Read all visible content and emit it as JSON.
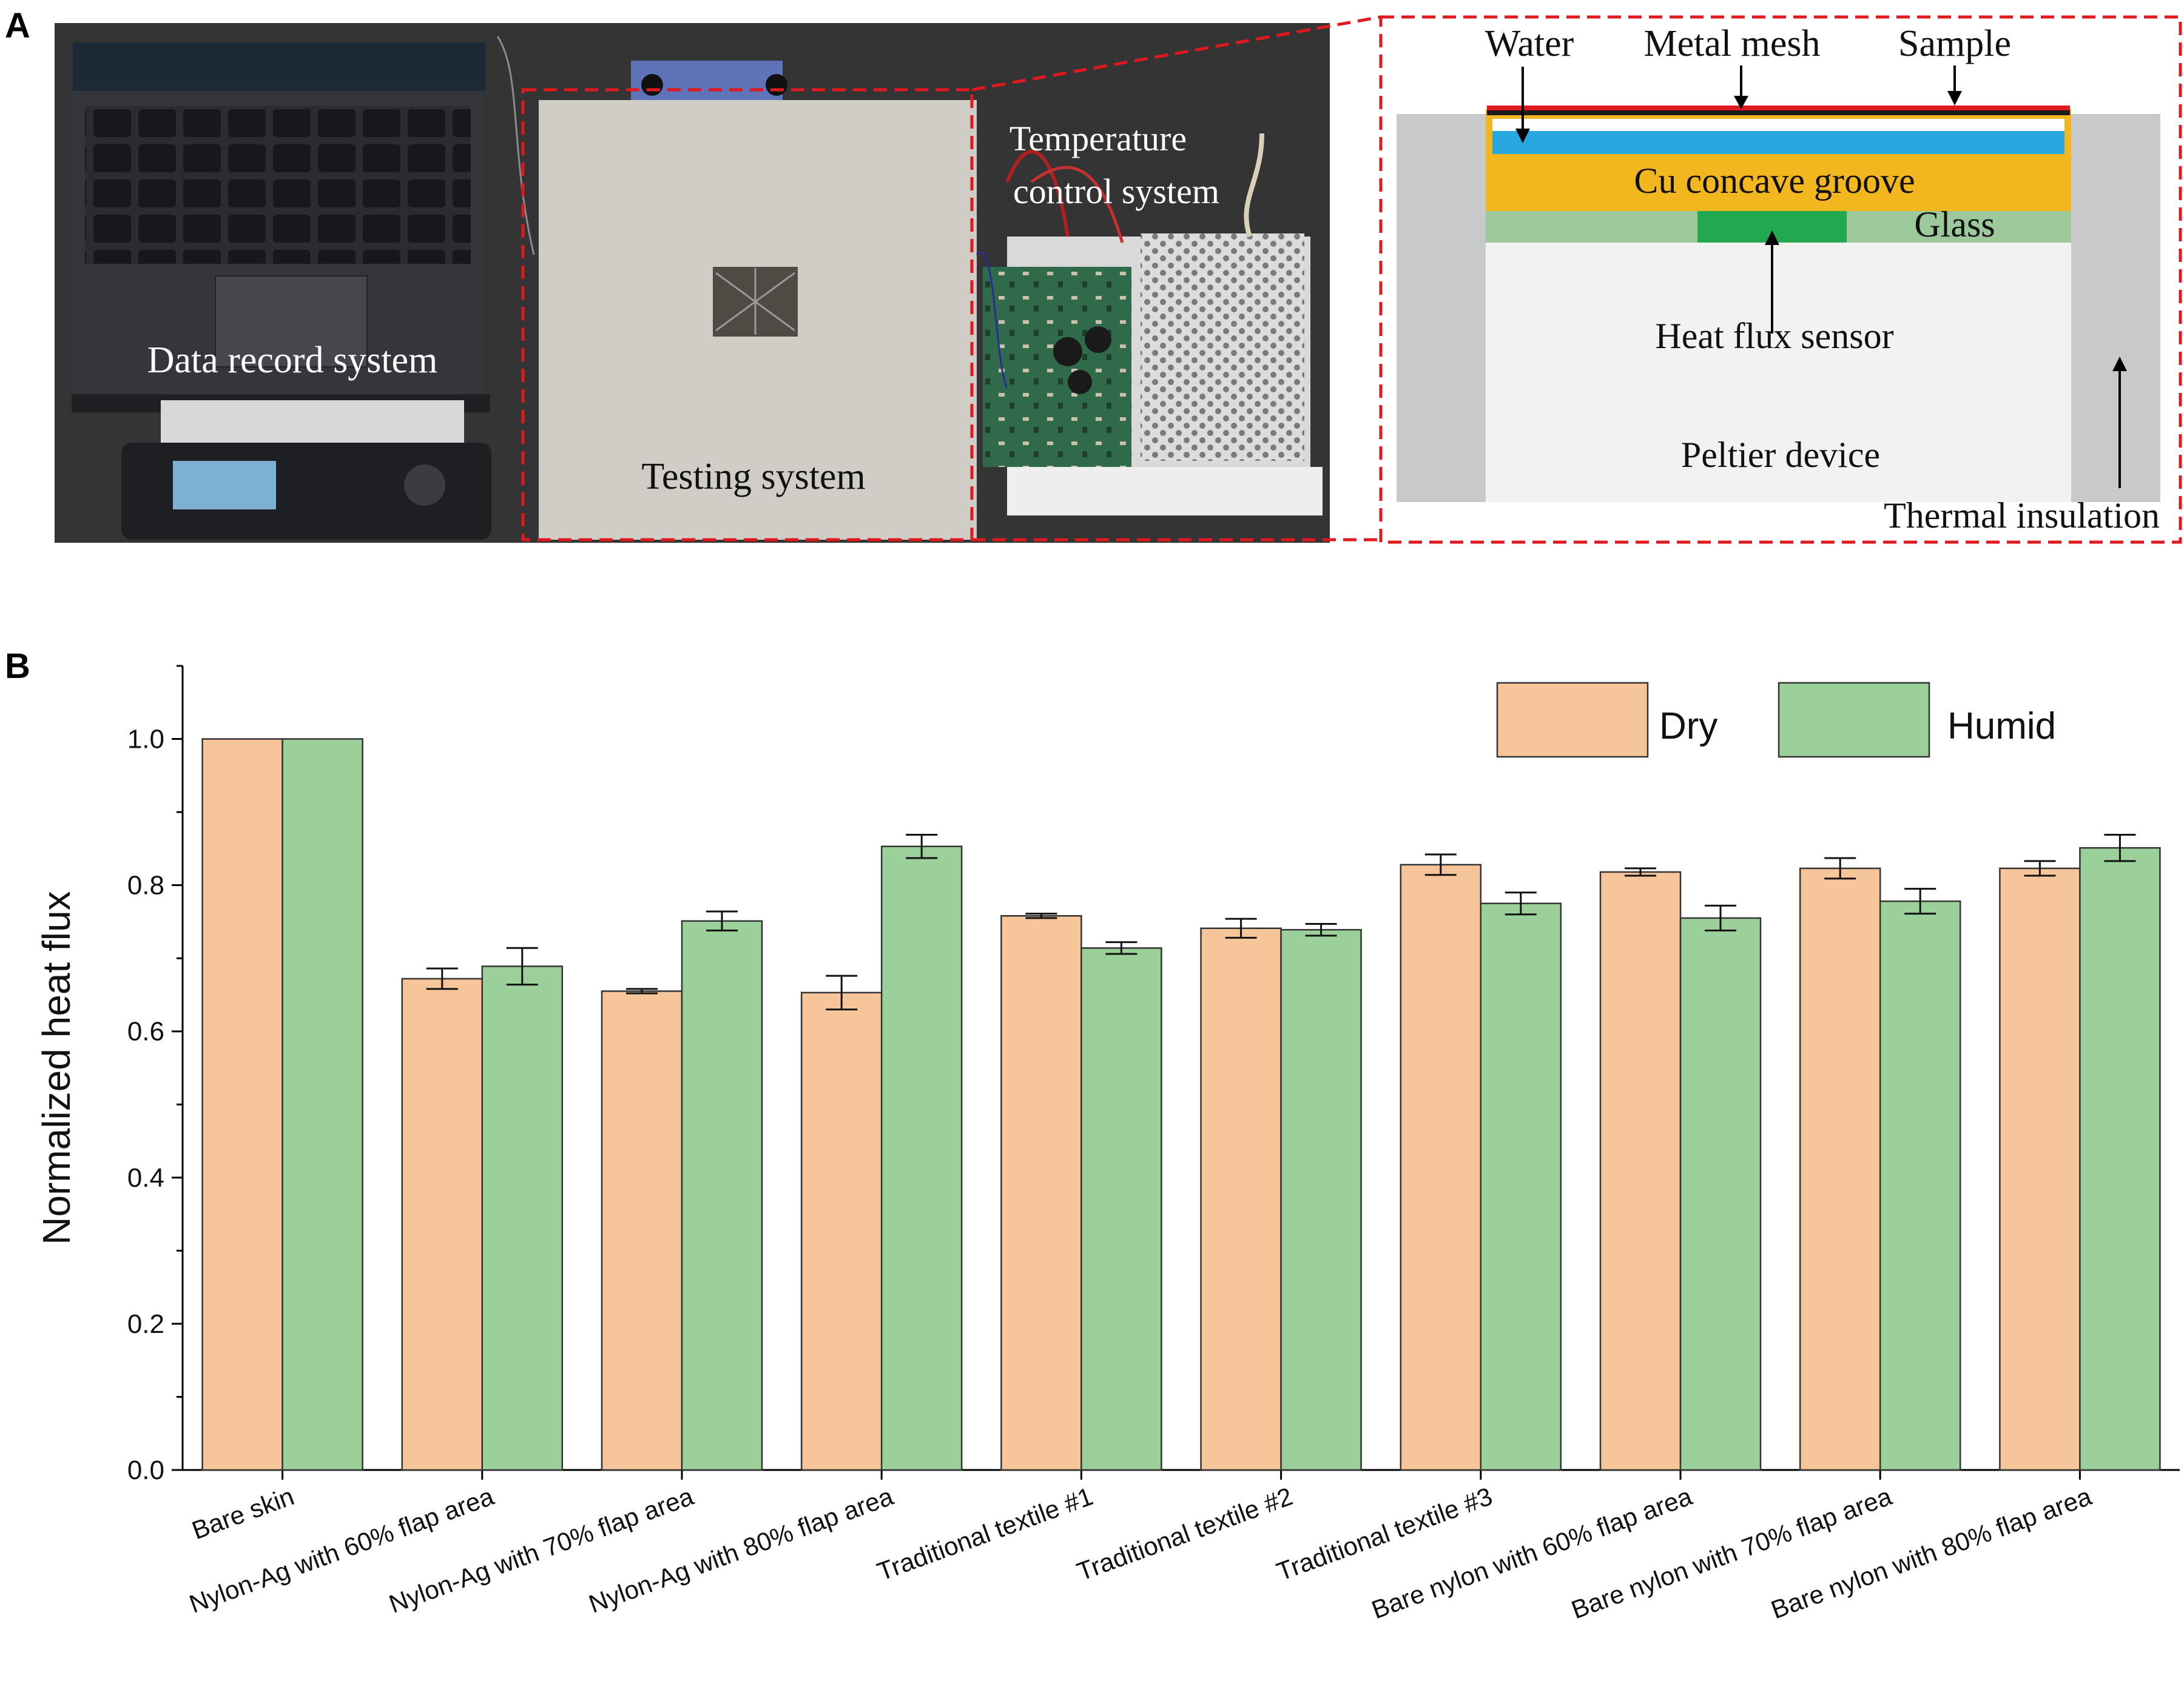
{
  "panel_a": {
    "letter": "A",
    "photo_labels": {
      "data_record": "Data record system",
      "testing": "Testing system",
      "temp_control_line1": "Temperature",
      "temp_control_line2": "control system"
    },
    "schematic_labels": {
      "water": "Water",
      "metal_mesh": "Metal mesh",
      "sample": "Sample",
      "cu_groove": "Cu concave groove",
      "glass": "Glass",
      "heat_flux_sensor": "Heat flux sensor",
      "peltier": "Peltier device",
      "thermal_insulation": "Thermal insulation"
    },
    "colors": {
      "cu": "#f2b71f",
      "water": "#29a8e0",
      "glass": "#9cc89b",
      "sensor": "#22a94f",
      "insulation": "#c8c9ca",
      "peltier": "#f2f2f1",
      "mesh": "#e0191e",
      "sample": "#1a1a1a",
      "frame": "#e0191e"
    }
  },
  "panel_b": {
    "letter": "B"
  },
  "chart_data": {
    "type": "bar",
    "title": "",
    "xlabel": "",
    "ylabel": "Normalized heat flux",
    "ylim": [
      0,
      1.1
    ],
    "yticks": [
      "0.0",
      "0.2",
      "0.4",
      "0.6",
      "0.8",
      "1.0"
    ],
    "ytick_values": [
      0,
      0.2,
      0.4,
      0.6,
      0.8,
      1.0
    ],
    "grid": false,
    "legend_position": "top-right",
    "categories": [
      "Bare skin",
      "Nylon-Ag with 60% flap area",
      "Nylon-Ag with 70% flap area",
      "Nylon-Ag with 80% flap area",
      "Traditional textile  #1",
      "Traditional textile  #2",
      "Traditional textile  #3",
      "Bare nylon with 60% flap area",
      "Bare nylon with 70% flap area",
      "Bare nylon with 80% flap area"
    ],
    "series": [
      {
        "name": "Dry",
        "color": "#f7c59a",
        "values": [
          1.0,
          0.672,
          0.655,
          0.653,
          0.758,
          0.741,
          0.828,
          0.818,
          0.823,
          0.823
        ],
        "errors": [
          0,
          0.014,
          0.003,
          0.023,
          0.003,
          0.013,
          0.014,
          0.005,
          0.014,
          0.01
        ]
      },
      {
        "name": "Humid",
        "color": "#9bd09b",
        "values": [
          1.0,
          0.689,
          0.751,
          0.853,
          0.714,
          0.739,
          0.775,
          0.755,
          0.778,
          0.851
        ],
        "errors": [
          0,
          0.025,
          0.013,
          0.016,
          0.008,
          0.008,
          0.015,
          0.017,
          0.017,
          0.018
        ]
      }
    ]
  }
}
